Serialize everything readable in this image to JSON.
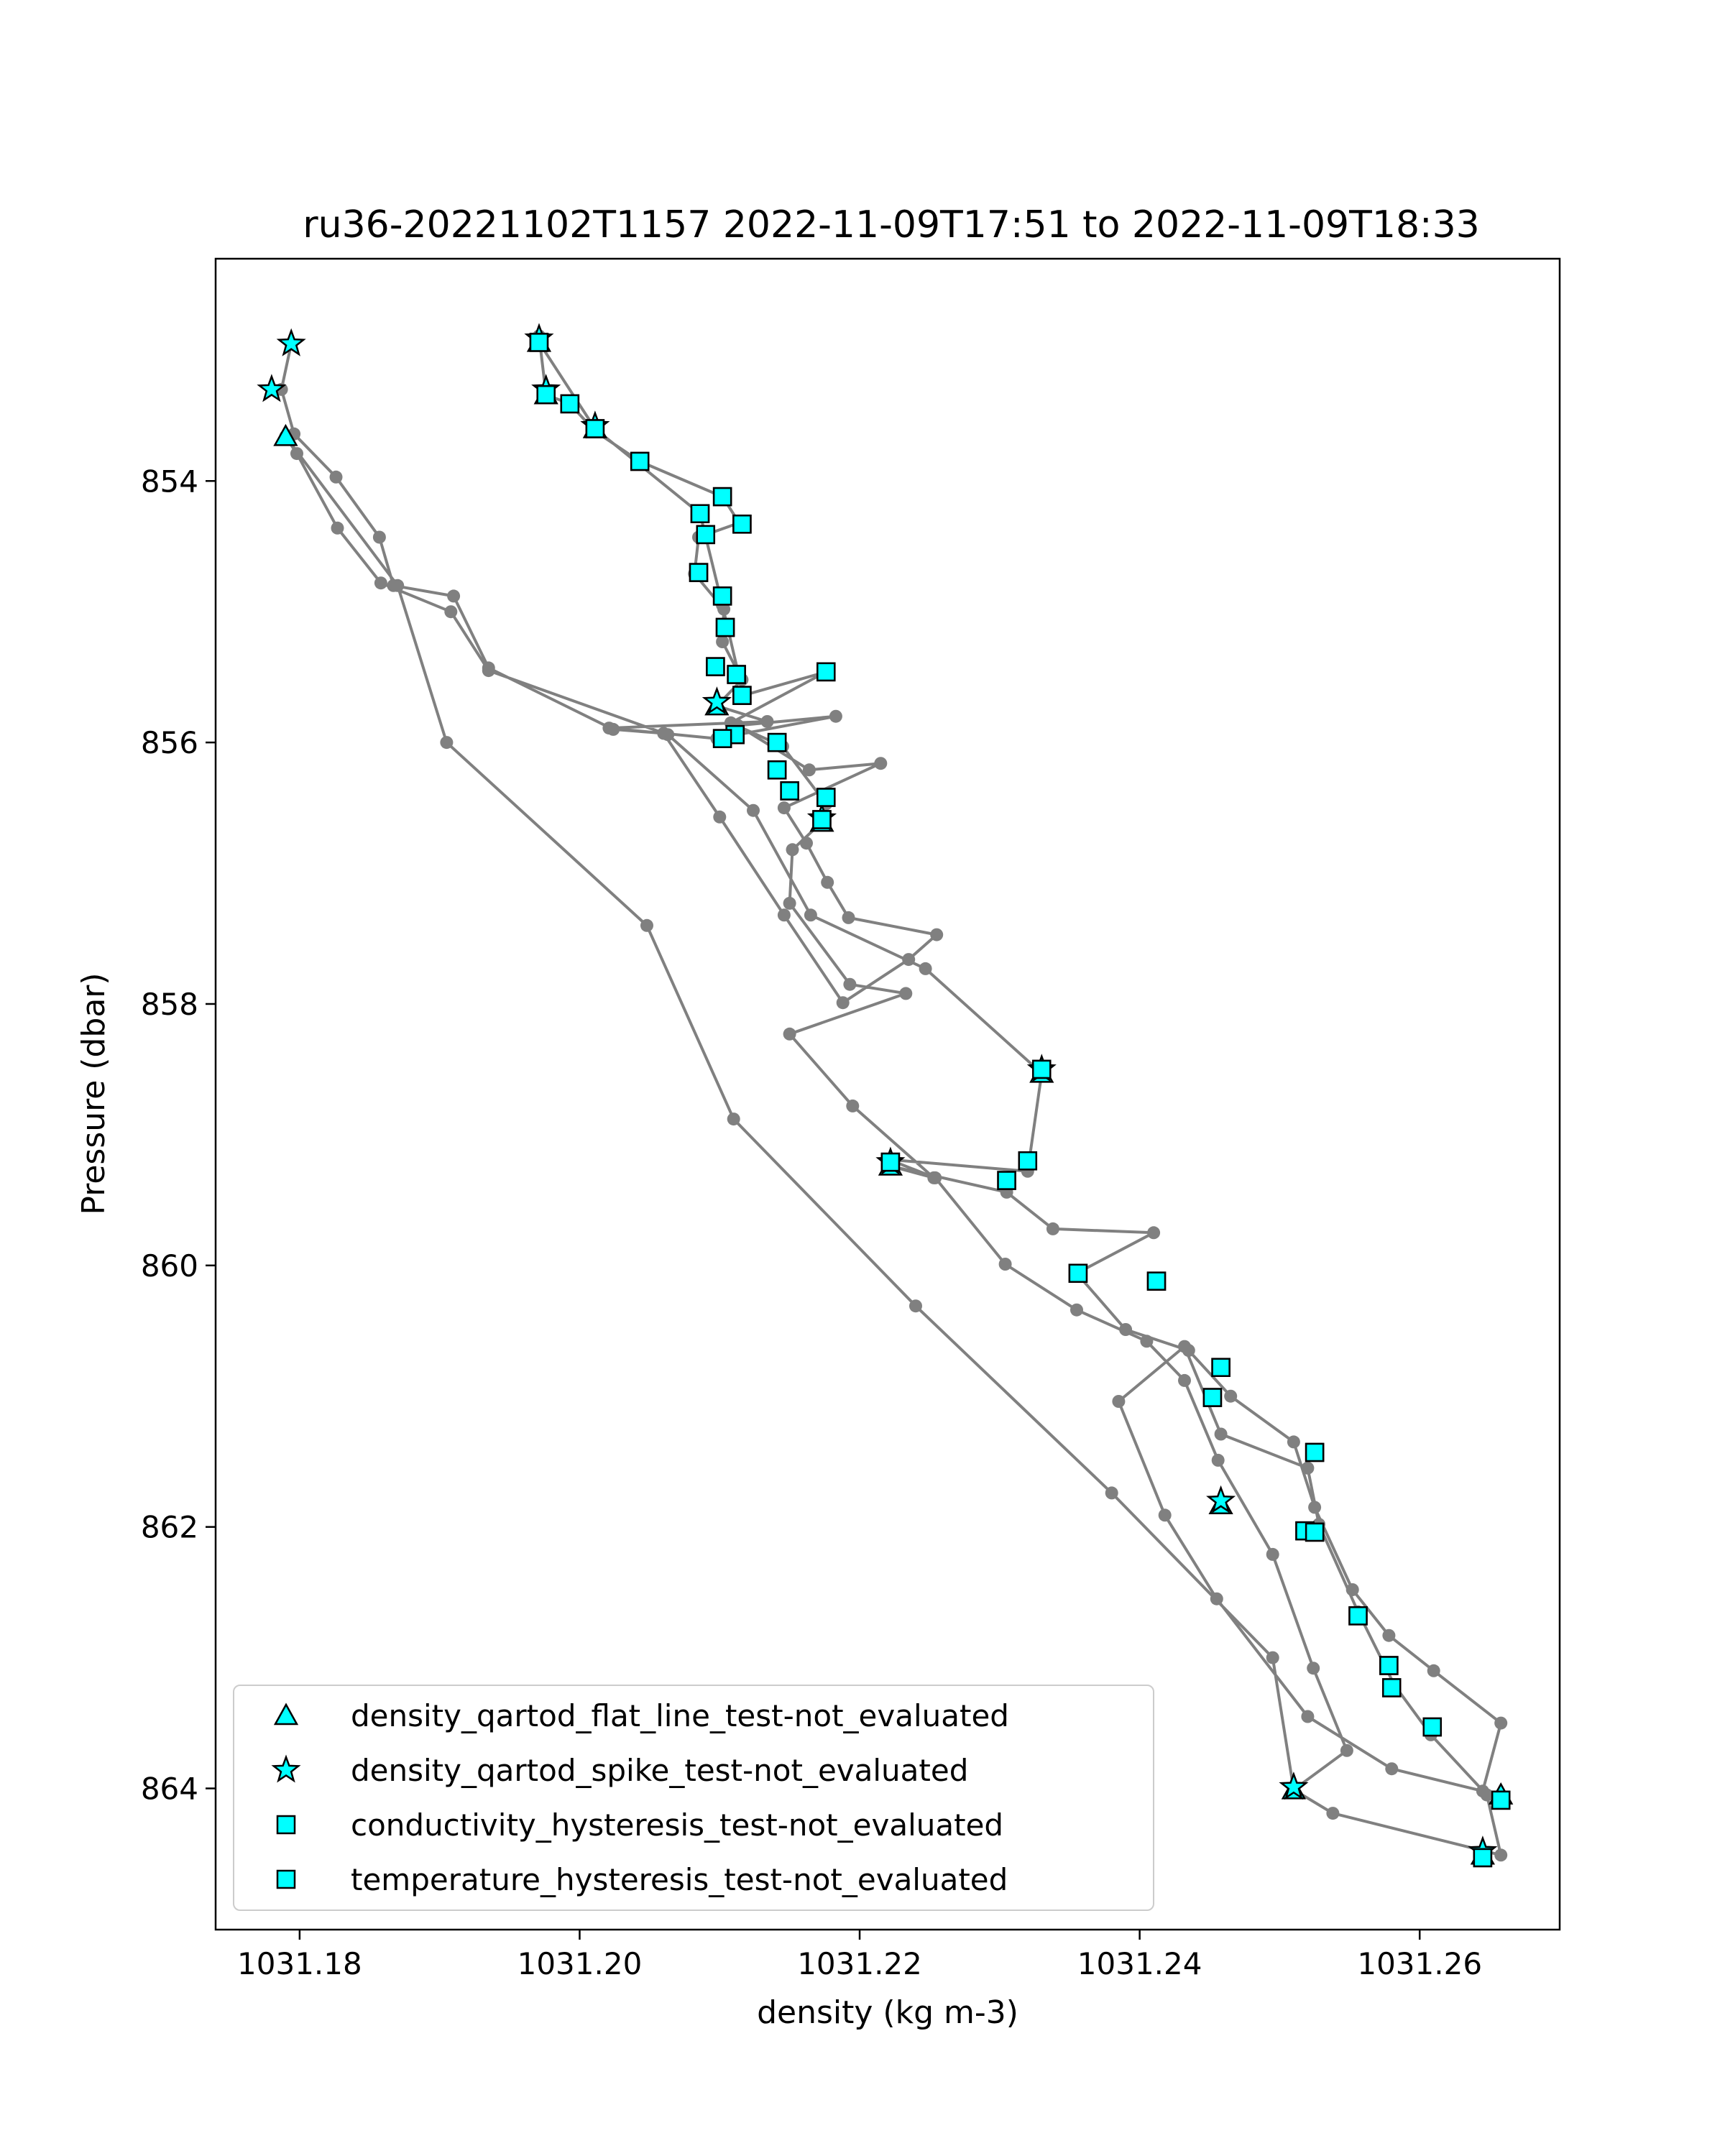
{
  "chart_data": {
    "type": "scatter",
    "title": "ru36-20221102T1157 2022-11-09T17:51 to 2022-11-09T18:33",
    "xlabel": "density (kg m-3)",
    "ylabel": "Pressure (dbar)",
    "xlim": [
      1031.174,
      1031.27
    ],
    "ylim": [
      865.08,
      852.3
    ],
    "y_inverted": true,
    "grid": false,
    "legend_position": "lower-left",
    "x_ticks": [
      {
        "value": 1031.18,
        "label": "1031.18"
      },
      {
        "value": 1031.2,
        "label": "1031.20"
      },
      {
        "value": 1031.22,
        "label": "1031.22"
      },
      {
        "value": 1031.24,
        "label": "1031.24"
      },
      {
        "value": 1031.26,
        "label": "1031.26"
      }
    ],
    "y_ticks": [
      {
        "value": 854,
        "label": "854"
      },
      {
        "value": 856,
        "label": "856"
      },
      {
        "value": 858,
        "label": "858"
      },
      {
        "value": 860,
        "label": "860"
      },
      {
        "value": 862,
        "label": "862"
      },
      {
        "value": 864,
        "label": "864"
      }
    ],
    "colors": {
      "profile_line": "#808080",
      "flag_fill": "#00ffff",
      "flag_edge": "#000000"
    },
    "profile": {
      "points": [
        [
          1031.1794,
          852.95
        ],
        [
          1031.1787,
          853.3
        ],
        [
          1031.1796,
          853.64
        ],
        [
          1031.1826,
          853.97
        ],
        [
          1031.1857,
          854.43
        ],
        [
          1031.1867,
          854.8
        ],
        [
          1031.191,
          854.88
        ],
        [
          1031.1935,
          855.43
        ],
        [
          1031.2024,
          855.9
        ],
        [
          1031.206,
          855.93
        ],
        [
          1031.21,
          856.57
        ],
        [
          1031.2146,
          857.32
        ],
        [
          1031.2188,
          857.99
        ],
        [
          1031.2235,
          857.66
        ],
        [
          1031.2255,
          857.47
        ],
        [
          1031.2192,
          857.34
        ],
        [
          1031.2177,
          857.07
        ],
        [
          1031.2162,
          856.77
        ],
        [
          1031.2146,
          856.5
        ],
        [
          1031.2215,
          856.16
        ],
        [
          1031.2164,
          856.21
        ],
        [
          1031.2113,
          855.87
        ],
        [
          1031.2183,
          855.8
        ],
        [
          1031.2098,
          855.97
        ],
        [
          1031.2021,
          855.89
        ],
        [
          1031.2134,
          855.84
        ],
        [
          1031.2098,
          855.72
        ],
        [
          1031.2116,
          855.52
        ],
        [
          1031.2102,
          855.23
        ],
        [
          1031.2103,
          854.98
        ],
        [
          1031.2082,
          854.71
        ],
        [
          1031.2085,
          854.43
        ],
        [
          1031.2114,
          854.32
        ],
        [
          1031.2102,
          854.12
        ],
        [
          1031.2043,
          853.85
        ],
        [
          1031.2011,
          853.62
        ],
        [
          1031.1993,
          853.41
        ],
        [
          1031.1976,
          853.34
        ],
        [
          1031.1971,
          852.89
        ],
        [
          1031.1971,
          852.94
        ],
        [
          1031.2011,
          853.6
        ],
        [
          1031.2086,
          854.25
        ],
        [
          1031.2102,
          854.95
        ],
        [
          1031.2117,
          855.64
        ],
        [
          1031.2176,
          855.46
        ],
        [
          1031.2108,
          855.85
        ],
        [
          1031.2145,
          856.03
        ],
        [
          1031.2176,
          856.47
        ],
        [
          1031.2173,
          856.61
        ],
        [
          1031.2152,
          856.82
        ],
        [
          1031.215,
          857.23
        ],
        [
          1031.2193,
          857.85
        ],
        [
          1031.2233,
          857.92
        ],
        [
          1031.215,
          858.23
        ],
        [
          1031.2195,
          858.78
        ],
        [
          1031.2253,
          859.33
        ],
        [
          1031.2222,
          859.24
        ],
        [
          1031.2305,
          859.44
        ],
        [
          1031.2338,
          859.72
        ],
        [
          1031.241,
          859.75
        ],
        [
          1031.2355,
          860.06
        ],
        [
          1031.239,
          860.49
        ],
        [
          1031.2435,
          860.65
        ],
        [
          1031.2465,
          861.0
        ],
        [
          1031.251,
          861.35
        ],
        [
          1031.2525,
          861.85
        ],
        [
          1031.2552,
          862.48
        ],
        [
          1031.2578,
          862.83
        ],
        [
          1031.261,
          863.1
        ],
        [
          1031.2658,
          863.5
        ],
        [
          1031.2645,
          864.02
        ],
        [
          1031.258,
          863.85
        ],
        [
          1031.252,
          863.45
        ],
        [
          1031.2455,
          862.55
        ],
        [
          1031.2418,
          861.91
        ],
        [
          1031.2385,
          861.04
        ],
        [
          1031.2432,
          860.62
        ],
        [
          1031.2458,
          861.29
        ],
        [
          1031.252,
          861.55
        ],
        [
          1031.2528,
          861.98
        ],
        [
          1031.2556,
          862.65
        ],
        [
          1031.2582,
          863.21
        ],
        [
          1031.2608,
          863.59
        ],
        [
          1031.2648,
          864.05
        ],
        [
          1031.2658,
          864.51
        ],
        [
          1031.2538,
          864.19
        ],
        [
          1031.251,
          864.01
        ],
        [
          1031.2548,
          863.71
        ],
        [
          1031.2524,
          863.08
        ],
        [
          1031.2495,
          862.21
        ],
        [
          1031.2456,
          861.49
        ],
        [
          1031.2432,
          860.88
        ],
        [
          1031.2405,
          860.58
        ],
        [
          1031.2355,
          860.34
        ],
        [
          1031.2304,
          859.99
        ],
        [
          1031.2254,
          859.33
        ],
        [
          1031.2221,
          859.19
        ],
        [
          1031.232,
          859.28
        ],
        [
          1031.233,
          858.53
        ],
        [
          1031.2247,
          857.73
        ],
        [
          1031.2165,
          857.32
        ],
        [
          1031.2124,
          856.52
        ],
        [
          1031.2063,
          855.94
        ],
        [
          1031.1935,
          855.45
        ],
        [
          1031.1908,
          855.0
        ],
        [
          1031.1858,
          854.78
        ],
        [
          1031.1827,
          854.36
        ],
        [
          1031.1798,
          853.79
        ],
        [
          1031.179,
          853.66
        ],
        [
          1031.187,
          854.8
        ],
        [
          1031.1905,
          856.0
        ],
        [
          1031.2048,
          857.4
        ],
        [
          1031.211,
          858.88
        ],
        [
          1031.224,
          860.31
        ],
        [
          1031.238,
          861.74
        ],
        [
          1031.2495,
          863.0
        ],
        [
          1031.251,
          864.01
        ]
      ]
    },
    "series": [
      {
        "name": "density_qartod_flat_line_test-not_evaluated",
        "marker": "triangle",
        "points": [
          [
            1031.179,
            853.66
          ],
          [
            1031.1971,
            852.94
          ],
          [
            1031.1976,
            853.34
          ],
          [
            1031.2011,
            853.6
          ],
          [
            1031.2098,
            855.72
          ],
          [
            1031.2173,
            856.61
          ],
          [
            1031.233,
            858.53
          ],
          [
            1031.2222,
            859.24
          ],
          [
            1031.2458,
            861.83
          ],
          [
            1031.251,
            864.01
          ],
          [
            1031.2658,
            864.05
          ],
          [
            1031.2645,
            864.51
          ]
        ]
      },
      {
        "name": "density_qartod_spike_test-not_evaluated",
        "marker": "star",
        "points": [
          [
            1031.1794,
            852.95
          ],
          [
            1031.178,
            853.3
          ],
          [
            1031.1971,
            852.91
          ],
          [
            1031.1976,
            853.3
          ],
          [
            1031.2011,
            853.58
          ],
          [
            1031.2098,
            855.69
          ],
          [
            1031.2173,
            856.58
          ],
          [
            1031.233,
            858.5
          ],
          [
            1031.2222,
            859.21
          ],
          [
            1031.2458,
            861.8
          ],
          [
            1031.251,
            863.99
          ],
          [
            1031.2645,
            864.48
          ]
        ]
      },
      {
        "name": "conductivity_hysteresis_test-not_evaluated",
        "marker": "square",
        "points": [
          [
            1031.1971,
            852.94
          ],
          [
            1031.1976,
            853.34
          ],
          [
            1031.1993,
            853.41
          ],
          [
            1031.2011,
            853.6
          ],
          [
            1031.2043,
            853.85
          ],
          [
            1031.2102,
            854.12
          ],
          [
            1031.2086,
            854.25
          ],
          [
            1031.2116,
            854.33
          ],
          [
            1031.209,
            854.41
          ],
          [
            1031.2085,
            854.7
          ],
          [
            1031.2102,
            854.88
          ],
          [
            1031.2104,
            855.12
          ],
          [
            1031.2097,
            855.42
          ],
          [
            1031.2112,
            855.48
          ],
          [
            1031.2176,
            855.46
          ],
          [
            1031.2116,
            855.64
          ],
          [
            1031.2111,
            855.94
          ],
          [
            1031.2102,
            855.97
          ],
          [
            1031.2141,
            856.0
          ],
          [
            1031.2141,
            856.21
          ],
          [
            1031.215,
            856.37
          ],
          [
            1031.2176,
            856.42
          ],
          [
            1031.2173,
            856.59
          ],
          [
            1031.233,
            858.5
          ],
          [
            1031.2222,
            859.21
          ],
          [
            1031.232,
            859.2
          ],
          [
            1031.2305,
            859.35
          ],
          [
            1031.2356,
            860.06
          ],
          [
            1031.2412,
            860.12
          ],
          [
            1031.2458,
            860.78
          ],
          [
            1031.2452,
            861.01
          ],
          [
            1031.2525,
            861.43
          ],
          [
            1031.2518,
            862.03
          ],
          [
            1031.2525,
            862.04
          ],
          [
            1031.2556,
            862.68
          ],
          [
            1031.2578,
            863.06
          ],
          [
            1031.258,
            863.23
          ],
          [
            1031.2609,
            863.53
          ],
          [
            1031.2658,
            864.09
          ],
          [
            1031.2645,
            864.53
          ]
        ]
      },
      {
        "name": "temperature_hysteresis_test-not_evaluated",
        "marker": "square",
        "points": [
          [
            1031.1971,
            852.94
          ],
          [
            1031.1976,
            853.34
          ],
          [
            1031.1993,
            853.41
          ],
          [
            1031.2011,
            853.6
          ],
          [
            1031.2043,
            853.85
          ],
          [
            1031.2102,
            854.12
          ],
          [
            1031.2086,
            854.25
          ],
          [
            1031.2116,
            854.33
          ],
          [
            1031.209,
            854.41
          ],
          [
            1031.2085,
            854.7
          ],
          [
            1031.2102,
            854.88
          ],
          [
            1031.2104,
            855.12
          ],
          [
            1031.2097,
            855.42
          ],
          [
            1031.2112,
            855.48
          ],
          [
            1031.2176,
            855.46
          ],
          [
            1031.2116,
            855.64
          ],
          [
            1031.2111,
            855.94
          ],
          [
            1031.2102,
            855.97
          ],
          [
            1031.2141,
            856.0
          ],
          [
            1031.2141,
            856.21
          ],
          [
            1031.215,
            856.37
          ],
          [
            1031.2176,
            856.42
          ],
          [
            1031.2173,
            856.59
          ],
          [
            1031.233,
            858.5
          ],
          [
            1031.2222,
            859.21
          ],
          [
            1031.232,
            859.2
          ],
          [
            1031.2305,
            859.35
          ],
          [
            1031.2356,
            860.06
          ],
          [
            1031.2412,
            860.12
          ],
          [
            1031.2458,
            860.78
          ],
          [
            1031.2452,
            861.01
          ],
          [
            1031.2525,
            861.43
          ],
          [
            1031.2518,
            862.03
          ],
          [
            1031.2525,
            862.04
          ],
          [
            1031.2556,
            862.68
          ],
          [
            1031.2578,
            863.06
          ],
          [
            1031.258,
            863.23
          ],
          [
            1031.2609,
            863.53
          ],
          [
            1031.2658,
            864.09
          ],
          [
            1031.2645,
            864.53
          ]
        ]
      }
    ]
  }
}
